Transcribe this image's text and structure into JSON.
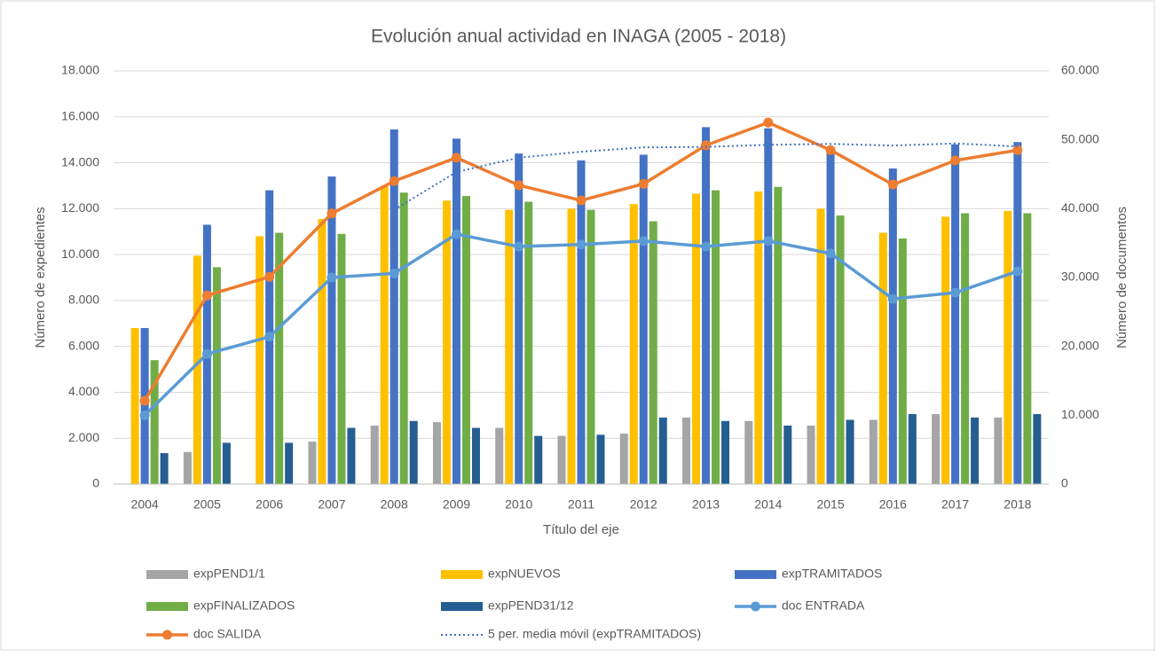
{
  "chart_data": {
    "type": "bar",
    "title": "Evolución anual actividad en INAGA (2005 - 2018)",
    "x_label": "Título del eje",
    "y_label": "Número de expedientes",
    "y2_label": "Número de documentos",
    "categories": [
      "2004",
      "2005",
      "2006",
      "2007",
      "2008",
      "2009",
      "2010",
      "2011",
      "2012",
      "2013",
      "2014",
      "2015",
      "2016",
      "2017",
      "2018"
    ],
    "ylim": [
      0,
      18000
    ],
    "yticks": [
      0,
      {
        "value": 2000,
        "label": "2.000"
      },
      {
        "value": 4000,
        "label": "4.000"
      },
      {
        "value": 6000,
        "label": "6.000"
      },
      {
        "value": 8000,
        "label": "8.000"
      },
      {
        "value": 10000,
        "label": "10.000"
      },
      {
        "value": 12000,
        "label": "12.000"
      },
      {
        "value": 14000,
        "label": "14.000"
      },
      {
        "value": 16000,
        "label": "16.000"
      },
      {
        "value": 18000,
        "label": "18.000"
      }
    ],
    "y2lim": [
      0,
      60000
    ],
    "y2ticks": [
      0,
      {
        "value": 10000,
        "label": "10.000"
      },
      {
        "value": 20000,
        "label": "20.000"
      },
      {
        "value": 30000,
        "label": "30.000"
      },
      {
        "value": 40000,
        "label": "40.000"
      },
      {
        "value": 50000,
        "label": "50.000"
      },
      {
        "value": 60000,
        "label": "60.000"
      }
    ],
    "grid": true,
    "legend": "bottom",
    "series": [
      {
        "name": "expPEND1/1",
        "type": "bar",
        "color": "#a5a5a5",
        "values": [
          0,
          1400,
          0,
          1850,
          2550,
          2700,
          2450,
          2100,
          2200,
          2900,
          2750,
          2550,
          2800,
          3050,
          2900
        ]
      },
      {
        "name": "expNUEVOS",
        "type": "bar",
        "color": "#ffc000",
        "values": [
          6800,
          9950,
          10800,
          11550,
          13000,
          12350,
          11950,
          12000,
          12200,
          12650,
          12750,
          12000,
          10950,
          11650,
          11900
        ]
      },
      {
        "name": "expTRAMITADOS",
        "type": "bar",
        "color": "#4472c4",
        "values": [
          6800,
          11300,
          12800,
          13400,
          15450,
          15050,
          14400,
          14100,
          14350,
          15550,
          15500,
          14600,
          13750,
          14800,
          14900
        ]
      },
      {
        "name": "expFINALIZADOS",
        "type": "bar",
        "color": "#70ad47",
        "values": [
          5400,
          9450,
          10950,
          10900,
          12700,
          12550,
          12300,
          11950,
          11450,
          12800,
          12950,
          11700,
          10700,
          11800,
          11800
        ]
      },
      {
        "name": "expPEND31/12",
        "type": "bar",
        "color": "#255e91",
        "values": [
          1350,
          1800,
          1800,
          2450,
          2750,
          2450,
          2100,
          2150,
          2900,
          2750,
          2550,
          2800,
          3050,
          2900,
          3050
        ]
      },
      {
        "name": "doc ENTRADA",
        "type": "line",
        "axis": "y2",
        "marker": true,
        "color": "#5b9bd5",
        "values": [
          10000,
          18900,
          21400,
          30000,
          30600,
          36300,
          34500,
          34800,
          35300,
          34500,
          35300,
          33500,
          26900,
          27800,
          30900
        ]
      },
      {
        "name": "doc SALIDA",
        "type": "line",
        "axis": "y2",
        "marker": true,
        "color": "#ed7d31",
        "values": [
          12100,
          27400,
          30100,
          39300,
          44000,
          47400,
          43400,
          41200,
          43600,
          49200,
          52500,
          48500,
          43500,
          47000,
          48500
        ]
      },
      {
        "name": "5 per. media móvil (expTRAMITADOS)",
        "type": "line",
        "dashed": true,
        "color": "#4472c4",
        "values": [
          null,
          null,
          null,
          null,
          11950,
          13600,
          14220,
          14480,
          14670,
          14690,
          14780,
          14820,
          14750,
          14840,
          14710
        ]
      }
    ]
  }
}
